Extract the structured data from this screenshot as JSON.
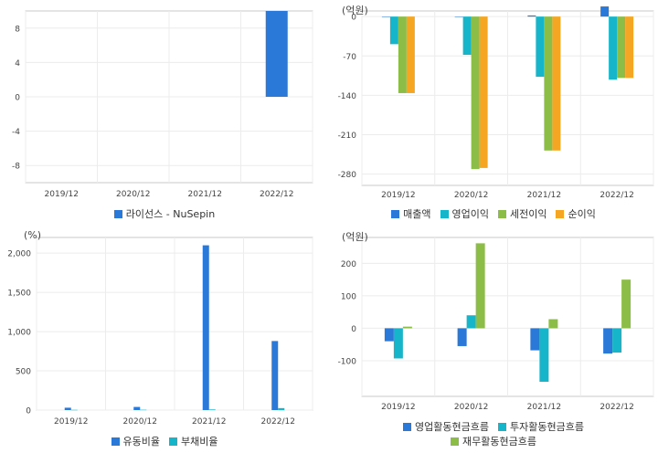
{
  "chart_data": [
    {
      "type": "bar",
      "unit": "",
      "categories": [
        "2019/12",
        "2020/12",
        "2021/12",
        "2022/12"
      ],
      "yticks": [
        8,
        4,
        0,
        -4,
        -8
      ],
      "ylim": [
        -10,
        10
      ],
      "grid": true,
      "legend_position": "bottom",
      "series": [
        {
          "name": "라이선스 - NuSepin",
          "color": "#2a78d8",
          "values": [
            null,
            null,
            null,
            10
          ]
        }
      ]
    },
    {
      "type": "bar",
      "unit": "(억원)",
      "categories": [
        "2019/12",
        "2020/12",
        "2021/12",
        "2022/12"
      ],
      "yticks": [
        0,
        -70,
        -140,
        -210,
        -280
      ],
      "ylim": [
        -300,
        10
      ],
      "grid": true,
      "legend_position": "bottom",
      "series": [
        {
          "name": "매출액",
          "color": "#2a78d8",
          "values": [
            0,
            0,
            2,
            18
          ]
        },
        {
          "name": "영업이익",
          "color": "#17b5c9",
          "values": [
            -49,
            -68,
            -107,
            -112
          ]
        },
        {
          "name": "세전이익",
          "color": "#8cbd47",
          "values": [
            -136,
            -271,
            -238,
            -109
          ]
        },
        {
          "name": "순이익",
          "color": "#f5a623",
          "values": [
            -136,
            -269,
            -238,
            -109
          ]
        }
      ]
    },
    {
      "type": "bar",
      "unit": "(%)",
      "categories": [
        "2019/12",
        "2020/12",
        "2021/12",
        "2022/12"
      ],
      "yticks": [
        2000,
        1500,
        1000,
        500,
        0
      ],
      "ytick_labels": [
        "2,000",
        "1,500",
        "1,000",
        "500",
        "0"
      ],
      "ylim": [
        0,
        2200
      ],
      "grid": true,
      "legend_position": "bottom",
      "series": [
        {
          "name": "유동비율",
          "color": "#2a78d8",
          "values": [
            30,
            40,
            2100,
            880
          ]
        },
        {
          "name": "부채비율",
          "color": "#17b5c9",
          "values": [
            3,
            4,
            8,
            25
          ]
        }
      ]
    },
    {
      "type": "bar",
      "unit": "(억원)",
      "categories": [
        "2019/12",
        "2020/12",
        "2021/12",
        "2022/12"
      ],
      "yticks": [
        200,
        100,
        0,
        -100
      ],
      "ylim": [
        -210,
        280
      ],
      "grid": true,
      "legend_position": "bottom",
      "series": [
        {
          "name": "영업활동현금흐름",
          "color": "#2a78d8",
          "values": [
            -40,
            -55,
            -68,
            -78
          ]
        },
        {
          "name": "투자활동현금흐름",
          "color": "#17b5c9",
          "values": [
            -93,
            40,
            -165,
            -75
          ]
        },
        {
          "name": "재무활동현금흐름",
          "color": "#8cbd47",
          "values": [
            5,
            262,
            28,
            150
          ]
        }
      ]
    }
  ]
}
